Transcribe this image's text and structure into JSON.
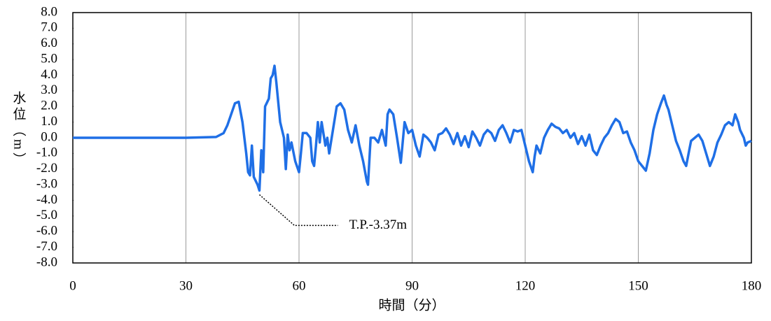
{
  "chart_data": {
    "type": "line",
    "annotation": "T.P.-3.37m",
    "xlabel": "時間（分）",
    "ylabel": "水位（m）",
    "color": "#1f6fe6",
    "grid": "x",
    "xlim": [
      0,
      180
    ],
    "xticks": [
      0,
      30,
      60,
      90,
      120,
      150,
      180
    ],
    "ylim": [
      -8,
      8
    ],
    "yticks": [
      {
        "value": 8,
        "label": "8.0"
      },
      {
        "value": 7,
        "label": "7.0"
      },
      {
        "value": 6,
        "label": "6.0"
      },
      {
        "value": 5,
        "label": "5.0"
      },
      {
        "value": 4,
        "label": "4.0"
      },
      {
        "value": 3,
        "label": "3.0"
      },
      {
        "value": 2,
        "label": "2.0"
      },
      {
        "value": 1,
        "label": "1.0"
      },
      {
        "value": 0,
        "label": "0.0"
      },
      {
        "value": -1,
        "label": "-1.0"
      },
      {
        "value": -2,
        "label": "-2.0"
      },
      {
        "value": -3,
        "label": "-3.0"
      },
      {
        "value": -4,
        "label": "-4.0"
      },
      {
        "value": -5,
        "label": "-5.0"
      },
      {
        "value": -6,
        "label": "-6.0"
      },
      {
        "value": -7,
        "label": "-7.0"
      },
      {
        "value": -8,
        "label": "-8.0"
      }
    ],
    "x": [
      0,
      30,
      38,
      40,
      41,
      42,
      43,
      44,
      45,
      46,
      46.5,
      47,
      47.5,
      48,
      49,
      49.5,
      50,
      50.5,
      51,
      52,
      52.5,
      53,
      53.5,
      54,
      55,
      56,
      56.5,
      57,
      57.5,
      58,
      59,
      60,
      60.5,
      61,
      62,
      63,
      63.5,
      64,
      64.5,
      65,
      65.5,
      66,
      67,
      67.5,
      68,
      69,
      70,
      71,
      72,
      73,
      74,
      75,
      76,
      77,
      78,
      78.3,
      79,
      80,
      81,
      82,
      83,
      83.5,
      84,
      85,
      86,
      87,
      88,
      89,
      90,
      91,
      92,
      93,
      94,
      95,
      96,
      97,
      98,
      99,
      100,
      101,
      102,
      103,
      104,
      105,
      106,
      107,
      108,
      109,
      110,
      111,
      112,
      113,
      114,
      115,
      116,
      117,
      118,
      119,
      120,
      121,
      122,
      122.5,
      123,
      124,
      125,
      126,
      127,
      128,
      129,
      130,
      131,
      132,
      133,
      134,
      135,
      136,
      137,
      138,
      139,
      140,
      141,
      142,
      143,
      144,
      145,
      146,
      147,
      148,
      149,
      150,
      151,
      152,
      153,
      154,
      155,
      156,
      156.8,
      157.5,
      158,
      159,
      160,
      161,
      162,
      162.7,
      163.5,
      164,
      165,
      166,
      167,
      168,
      169,
      170,
      171,
      172,
      173,
      174,
      175,
      175.7,
      176.5,
      177,
      178,
      178.5,
      179,
      180
    ],
    "values": [
      0,
      0,
      0.05,
      0.3,
      0.8,
      1.5,
      2.2,
      2.3,
      1.0,
      -1.0,
      -2.2,
      -2.4,
      -0.5,
      -2.5,
      -3.0,
      -3.37,
      -0.8,
      -2.2,
      2.0,
      2.5,
      3.8,
      4.0,
      4.6,
      3.5,
      1.0,
      0,
      -2.0,
      0.2,
      -0.8,
      -0.3,
      -1.5,
      -2.2,
      -1.0,
      0.3,
      0.3,
      0,
      -1.5,
      -1.8,
      -0.5,
      1.0,
      -0.3,
      1.0,
      -0.5,
      0,
      -1.0,
      0.5,
      2.0,
      2.2,
      1.8,
      0.5,
      -0.3,
      0.8,
      -0.5,
      -1.5,
      -2.8,
      -3.0,
      0,
      0,
      -0.3,
      0.5,
      -0.5,
      1.5,
      1.8,
      1.5,
      0,
      -1.6,
      1.0,
      0.3,
      0.5,
      -0.5,
      -1.2,
      0.2,
      0,
      -0.3,
      -0.8,
      0.2,
      0.3,
      0.6,
      0.2,
      -0.4,
      0.3,
      -0.5,
      0.1,
      -0.6,
      0.4,
      0,
      -0.5,
      0.2,
      0.5,
      0.3,
      -0.2,
      0.5,
      0.8,
      0.3,
      -0.3,
      0.5,
      0.4,
      0.5,
      -0.5,
      -1.5,
      -2.2,
      -1.2,
      -0.5,
      -1.0,
      0,
      0.5,
      0.9,
      0.7,
      0.6,
      0.3,
      0.5,
      0,
      0.3,
      -0.4,
      0.1,
      -0.5,
      0.2,
      -0.8,
      -1.1,
      -0.5,
      0,
      0.3,
      0.8,
      1.2,
      1.0,
      0.3,
      0.4,
      -0.3,
      -0.8,
      -1.5,
      -1.8,
      -2.1,
      -1.0,
      0.5,
      1.5,
      2.2,
      2.7,
      2.1,
      1.8,
      0.8,
      -0.2,
      -0.8,
      -1.5,
      -1.8,
      -0.8,
      -0.2,
      0,
      0.2,
      -0.2,
      -1.0,
      -1.8,
      -1.2,
      -0.3,
      0.2,
      0.8,
      1.0,
      0.8,
      1.5,
      1.0,
      0.5,
      0,
      -0.5,
      -0.3,
      -0.2
    ]
  }
}
